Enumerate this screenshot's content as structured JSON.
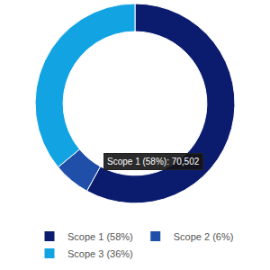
{
  "chart_data": {
    "type": "pie",
    "categories": [
      "Scope 1 (58%)",
      "Scope 2 (6%)",
      "Scope 3 (36%)"
    ],
    "values": [
      58,
      6,
      36
    ],
    "colors": [
      "#0b1c6e",
      "#1f4fa8",
      "#12a3e3"
    ],
    "legend": "bottom",
    "annotations": [
      {
        "text": "Scope 1 (58%): 70,502"
      }
    ]
  }
}
